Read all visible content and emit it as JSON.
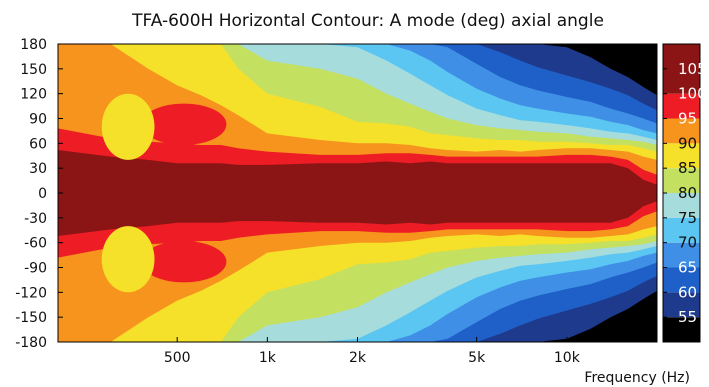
{
  "chart_data": {
    "type": "heatmap",
    "title": "TFA-600H Horizontal Contour: A mode (deg) axial angle",
    "xlabel": "Frequency (Hz)",
    "ylabel": "",
    "x_scale": "log",
    "xlim": [
      200,
      20000
    ],
    "ylim": [
      -180,
      180
    ],
    "x_ticks": [
      {
        "value": 500,
        "label": "500"
      },
      {
        "value": 1000,
        "label": "1k"
      },
      {
        "value": 2000,
        "label": "2k"
      },
      {
        "value": 5000,
        "label": "5k"
      },
      {
        "value": 10000,
        "label": "10k"
      }
    ],
    "y_ticks": [
      180,
      150,
      120,
      90,
      60,
      30,
      0,
      -30,
      -60,
      -90,
      -120,
      -150,
      -180
    ],
    "colorbar": {
      "ticks": [
        105,
        100,
        95,
        90,
        85,
        80,
        75,
        70,
        65,
        60,
        55
      ],
      "levels": [
        {
          "min": 50,
          "max": 55,
          "color": "#000000"
        },
        {
          "min": 55,
          "max": 60,
          "color": "#1e3a8c"
        },
        {
          "min": 60,
          "max": 65,
          "color": "#1f5fc8"
        },
        {
          "min": 65,
          "max": 70,
          "color": "#3f8fe6"
        },
        {
          "min": 70,
          "max": 75,
          "color": "#5cc6f2"
        },
        {
          "min": 75,
          "max": 80,
          "color": "#a6dcdc"
        },
        {
          "min": 80,
          "max": 85,
          "color": "#c4e060"
        },
        {
          "min": 85,
          "max": 90,
          "color": "#f5e02a"
        },
        {
          "min": 90,
          "max": 95,
          "color": "#f7941d"
        },
        {
          "min": 95,
          "max": 100,
          "color": "#ee1c24"
        },
        {
          "min": 100,
          "max": 110,
          "color": "#8b1515"
        }
      ]
    },
    "contour_bands": {
      "frequencies": [
        200,
        300,
        400,
        500,
        600,
        700,
        800,
        1000,
        1500,
        2000,
        2500,
        3000,
        3500,
        4000,
        5000,
        6000,
        7000,
        8000,
        10000,
        12000,
        14000,
        16000,
        18000,
        20000
      ],
      "angle_limits_deg": {
        "100": [
          52,
          44,
          40,
          36,
          36,
          36,
          34,
          34,
          36,
          36,
          38,
          36,
          38,
          36,
          36,
          36,
          36,
          36,
          36,
          36,
          36,
          30,
          16,
          10
        ],
        "95": [
          78,
          66,
          62,
          60,
          58,
          58,
          54,
          50,
          46,
          46,
          48,
          48,
          46,
          44,
          44,
          44,
          44,
          44,
          46,
          46,
          44,
          40,
          28,
          22
        ],
        "90": [
          180,
          180,
          150,
          130,
          118,
          106,
          94,
          72,
          64,
          60,
          60,
          58,
          54,
          52,
          50,
          52,
          50,
          52,
          54,
          54,
          52,
          50,
          44,
          40
        ],
        "85": [
          180,
          180,
          180,
          180,
          180,
          180,
          150,
          120,
          104,
          86,
          84,
          80,
          72,
          70,
          66,
          64,
          64,
          62,
          62,
          60,
          58,
          58,
          54,
          50
        ],
        "80": [
          180,
          180,
          180,
          180,
          180,
          180,
          180,
          160,
          150,
          138,
          120,
          108,
          98,
          90,
          82,
          78,
          76,
          74,
          72,
          68,
          66,
          64,
          62,
          58
        ],
        "75": [
          180,
          180,
          180,
          180,
          180,
          180,
          180,
          180,
          180,
          176,
          160,
          144,
          130,
          118,
          102,
          94,
          88,
          86,
          82,
          78,
          74,
          72,
          68,
          64
        ],
        "70": [
          180,
          180,
          180,
          180,
          180,
          180,
          180,
          180,
          180,
          180,
          180,
          172,
          160,
          146,
          126,
          114,
          106,
          102,
          96,
          92,
          86,
          82,
          76,
          72
        ],
        "65": [
          180,
          180,
          180,
          180,
          180,
          180,
          180,
          180,
          180,
          180,
          180,
          180,
          180,
          176,
          156,
          140,
          130,
          124,
          116,
          110,
          102,
          96,
          90,
          84
        ],
        "60": [
          180,
          180,
          180,
          180,
          180,
          180,
          180,
          180,
          180,
          180,
          180,
          180,
          180,
          180,
          180,
          170,
          160,
          152,
          142,
          134,
          126,
          118,
          108,
          100
        ],
        "55": [
          180,
          180,
          180,
          180,
          180,
          180,
          180,
          180,
          180,
          180,
          180,
          180,
          180,
          180,
          180,
          180,
          180,
          180,
          176,
          164,
          150,
          140,
          128,
          118
        ]
      },
      "lobes": [
        {
          "level": 95,
          "freq_range": [
            380,
            730
          ],
          "center_deg": 83,
          "half_width_deg": 25
        },
        {
          "level": 85,
          "freq_range": [
            280,
            420
          ],
          "center_deg": 80,
          "half_width_deg": 40
        }
      ]
    }
  }
}
